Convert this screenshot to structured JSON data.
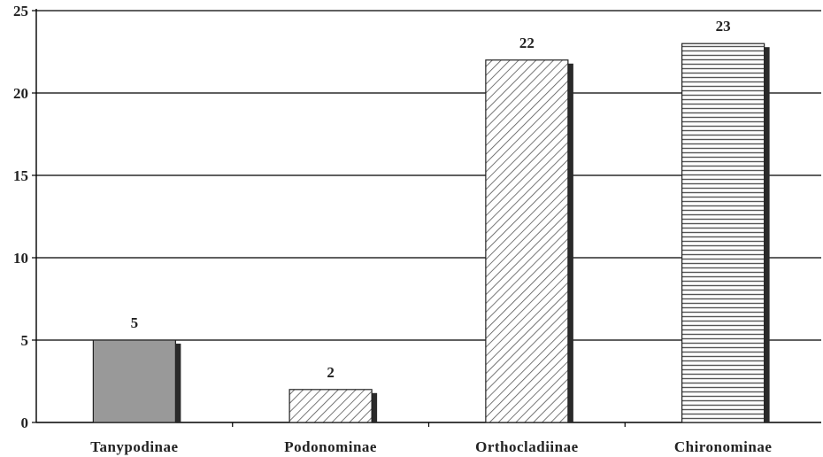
{
  "chart_data": {
    "type": "bar",
    "title": "",
    "xlabel": "",
    "ylabel": "",
    "categories": [
      "Tanypodinae",
      "Podonominae",
      "Orthocladiinae",
      "Chironominae"
    ],
    "values": [
      5,
      2,
      22,
      23
    ],
    "data_labels": [
      "5",
      "2",
      "22",
      "23"
    ],
    "ylim": [
      0,
      25
    ],
    "y_ticks": [
      0,
      5,
      10,
      15,
      20,
      25
    ],
    "y_tick_labels": [
      "0",
      "5",
      "10",
      "15",
      "20",
      "25"
    ],
    "grid": "horizontal",
    "legend": "none",
    "bar_fills": [
      "solid-gray",
      "diagonal-hatch",
      "diagonal-hatch",
      "horizontal-stripes"
    ],
    "colors": {
      "bar_solid": "#999999",
      "hatch_line": "#555555",
      "bar_outline": "#222222",
      "bar_shadow": "#2a2a2a",
      "grid": "#000000",
      "axis": "#000000"
    }
  }
}
